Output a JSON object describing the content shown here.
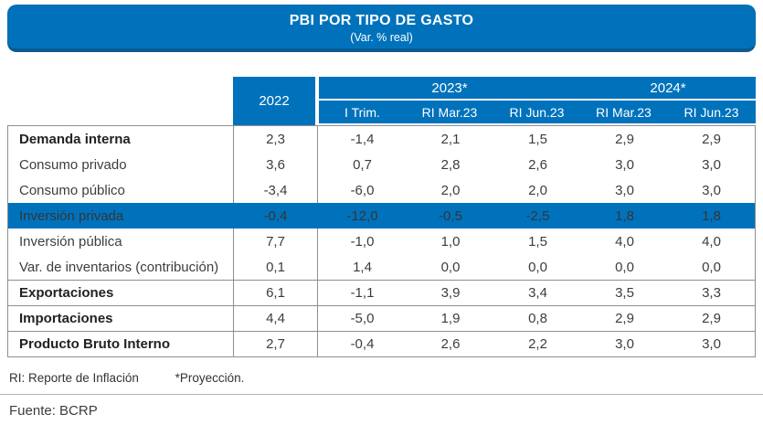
{
  "banner": {
    "title": "PBI POR TIPO DE GASTO",
    "subtitle": "(Var. % real)"
  },
  "table": {
    "col_2022": "2022",
    "group_2023": "2023*",
    "group_2024": "2024*",
    "subheaders": [
      "I Trim.",
      "RI Mar.23",
      "RI Jun.23",
      "RI Mar.23",
      "RI Jun.23"
    ],
    "rows": [
      {
        "label": "Demanda interna",
        "values": [
          "2,3",
          "-1,4",
          "2,1",
          "1,5",
          "2,9",
          "2,9"
        ]
      },
      {
        "label": "Consumo privado",
        "values": [
          "3,6",
          "0,7",
          "2,8",
          "2,6",
          "3,0",
          "3,0"
        ]
      },
      {
        "label": "Consumo público",
        "values": [
          "-3,4",
          "-6,0",
          "2,0",
          "2,0",
          "3,0",
          "3,0"
        ]
      },
      {
        "label": "Inversión privada",
        "values": [
          "-0,4",
          "-12,0",
          "-0,5",
          "-2,5",
          "1,8",
          "1,8"
        ]
      },
      {
        "label": "Inversión pública",
        "values": [
          "7,7",
          "-1,0",
          "1,0",
          "1,5",
          "4,0",
          "4,0"
        ]
      },
      {
        "label": "Var. de inventarios (contribución)",
        "values": [
          "0,1",
          "1,4",
          "0,0",
          "0,0",
          "0,0",
          "0,0"
        ]
      },
      {
        "label": "Exportaciones",
        "values": [
          "6,1",
          "-1,1",
          "3,9",
          "3,4",
          "3,5",
          "3,3"
        ]
      },
      {
        "label": "Importaciones",
        "values": [
          "4,4",
          "-5,0",
          "1,9",
          "0,8",
          "2,9",
          "2,9"
        ]
      },
      {
        "label": "Producto Bruto Interno",
        "values": [
          "2,7",
          "-0,4",
          "2,6",
          "2,2",
          "3,0",
          "3,0"
        ]
      }
    ]
  },
  "footnotes": {
    "ri": "RI: Reporte de Inflación",
    "projection": "*Proyección."
  },
  "source": "Fuente: BCRP",
  "colors": {
    "accent_blue": "#0072BC",
    "highlight_row_bg": "#0072BC",
    "border_gray": "#8f8f8f",
    "text_dark": "#3d3d3d"
  },
  "chart_data": {
    "type": "table",
    "title": "PBI POR TIPO DE GASTO",
    "subtitle": "(Var. % real)",
    "column_groups": [
      {
        "label": "2022",
        "span": 1
      },
      {
        "label": "2023*",
        "span": 3
      },
      {
        "label": "2024*",
        "span": 2
      }
    ],
    "columns": [
      "2022",
      "2023* I Trim.",
      "2023* RI Mar.23",
      "2023* RI Jun.23",
      "2024* RI Mar.23",
      "2024* RI Jun.23"
    ],
    "rows": [
      {
        "label": "Demanda interna",
        "values": [
          2.3,
          -1.4,
          2.1,
          1.5,
          2.9,
          2.9
        ],
        "bold": true
      },
      {
        "label": "Consumo privado",
        "values": [
          3.6,
          0.7,
          2.8,
          2.6,
          3.0,
          3.0
        ],
        "bold": false
      },
      {
        "label": "Consumo público",
        "values": [
          -3.4,
          -6.0,
          2.0,
          2.0,
          3.0,
          3.0
        ],
        "bold": false
      },
      {
        "label": "Inversión privada",
        "values": [
          -0.4,
          -12.0,
          -0.5,
          -2.5,
          1.8,
          1.8
        ],
        "bold": false,
        "highlighted": true
      },
      {
        "label": "Inversión pública",
        "values": [
          7.7,
          -1.0,
          1.0,
          1.5,
          4.0,
          4.0
        ],
        "bold": false
      },
      {
        "label": "Var. de inventarios (contribución)",
        "values": [
          0.1,
          1.4,
          0.0,
          0.0,
          0.0,
          0.0
        ],
        "bold": false
      },
      {
        "label": "Exportaciones",
        "values": [
          6.1,
          -1.1,
          3.9,
          3.4,
          3.5,
          3.3
        ],
        "bold": true
      },
      {
        "label": "Importaciones",
        "values": [
          4.4,
          -5.0,
          1.9,
          0.8,
          2.9,
          2.9
        ],
        "bold": true
      },
      {
        "label": "Producto Bruto Interno",
        "values": [
          2.7,
          -0.4,
          2.6,
          2.2,
          3.0,
          3.0
        ],
        "bold": true
      }
    ],
    "footnotes": [
      "RI: Reporte de Inflación",
      "*Proyección."
    ],
    "source": "Fuente: BCRP",
    "decimal_separator": ","
  }
}
